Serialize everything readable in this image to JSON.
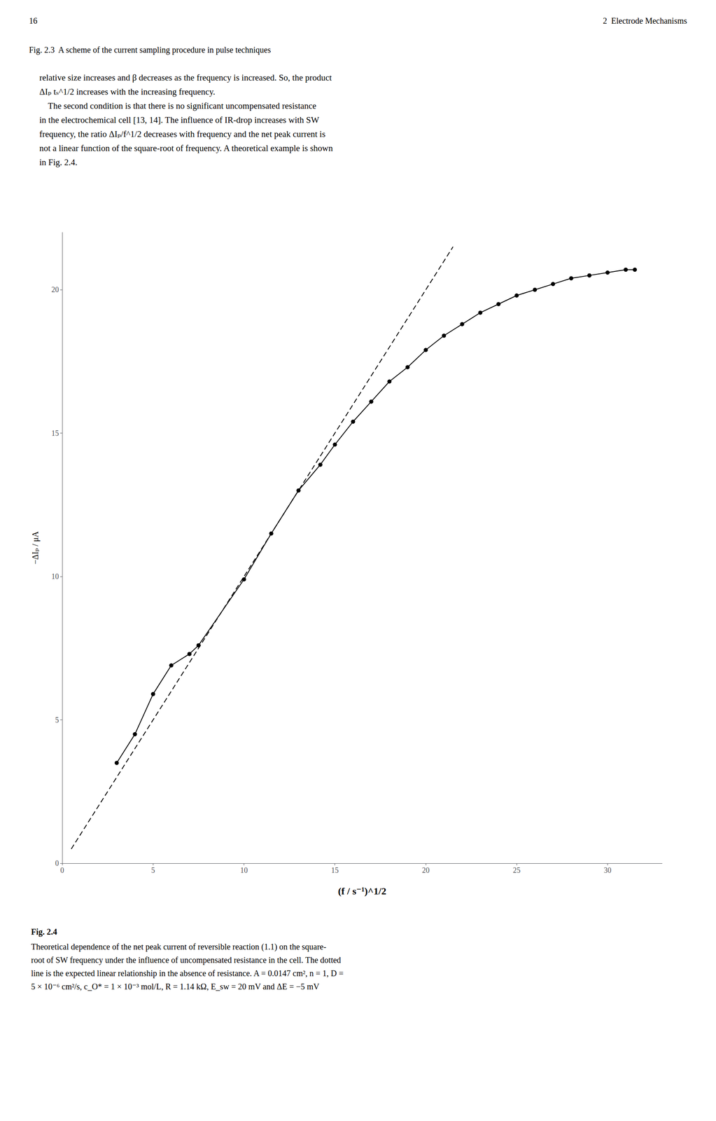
{
  "chart_data": {
    "type": "line",
    "title": "Fig. 2.4",
    "subtitle": "Theoretical dependence of the net peak current of reversible reaction (1.1) on the square-\nroot of SW frequency under the influence of uncompensated resistance in the cell. The dotted\nline is the expected linear relationship in the absence of resistance. A = 0.0147 cm², n = 1, D =\n5 × 10⁻⁶ cm²/s, c_O* = 1 × 10⁻³ mol/L, R = 1.14 kΩ, E_sw = 20 mV and ΔE = −5 mV",
    "annotations": [
      "16",
      "2  Electrode Mechanisms",
      "Fig. 2.3  A scheme of the current sampling procedure in pulse techniques",
      "relative size increases and β decreases as the frequency is increased. So, the product\nΔIₚ tₛ^1/2 increases with the increasing frequency.\n    The second condition is that there is no significant uncompensated resistance\nin the electrochemical cell [13, 14]. The influence of IR-drop increases with SW\nfrequency, the ratio ΔIₚ/f^1/2 decreases with frequency and the net peak current is\nnot a linear function of the square-root of frequency. A theoretical example is shown\nin Fig. 2.4."
    ],
    "x_label": "(f / s⁻¹)^1/2",
    "y_label": "−ΔIₚ / μA",
    "xlim": [
      0,
      33
    ],
    "ylim": [
      0,
      22
    ],
    "xticks": [
      0,
      5,
      10,
      15,
      20,
      25,
      30
    ],
    "yticks": [
      0,
      5,
      10,
      15,
      20
    ],
    "grid": false,
    "series": [
      {
        "type": "line",
        "marker": "circle",
        "color": "black",
        "x": [
          3.0,
          4.0,
          5.0,
          6.0,
          7.0,
          7.5,
          10.0,
          11.5,
          13.0,
          14.2,
          15.0,
          16.0,
          17.0,
          18.0,
          19.0,
          20.0,
          21.0,
          22.0,
          23.0,
          24.0,
          25.0,
          26.0,
          27.0,
          28.0,
          29.0,
          30.0,
          31.0,
          31.5
        ],
        "values": [
          3.5,
          4.5,
          5.9,
          6.9,
          7.3,
          7.6,
          9.9,
          11.5,
          13.0,
          13.9,
          14.6,
          15.4,
          16.1,
          16.8,
          17.3,
          17.9,
          18.4,
          18.8,
          19.2,
          19.5,
          19.8,
          20.0,
          20.2,
          20.4,
          20.5,
          20.6,
          20.7,
          20.7
        ]
      },
      {
        "type": "line",
        "line_style": "dashed",
        "color": "black",
        "x": [
          0.5,
          21.5
        ],
        "values": [
          0.5,
          21.5
        ]
      }
    ]
  }
}
